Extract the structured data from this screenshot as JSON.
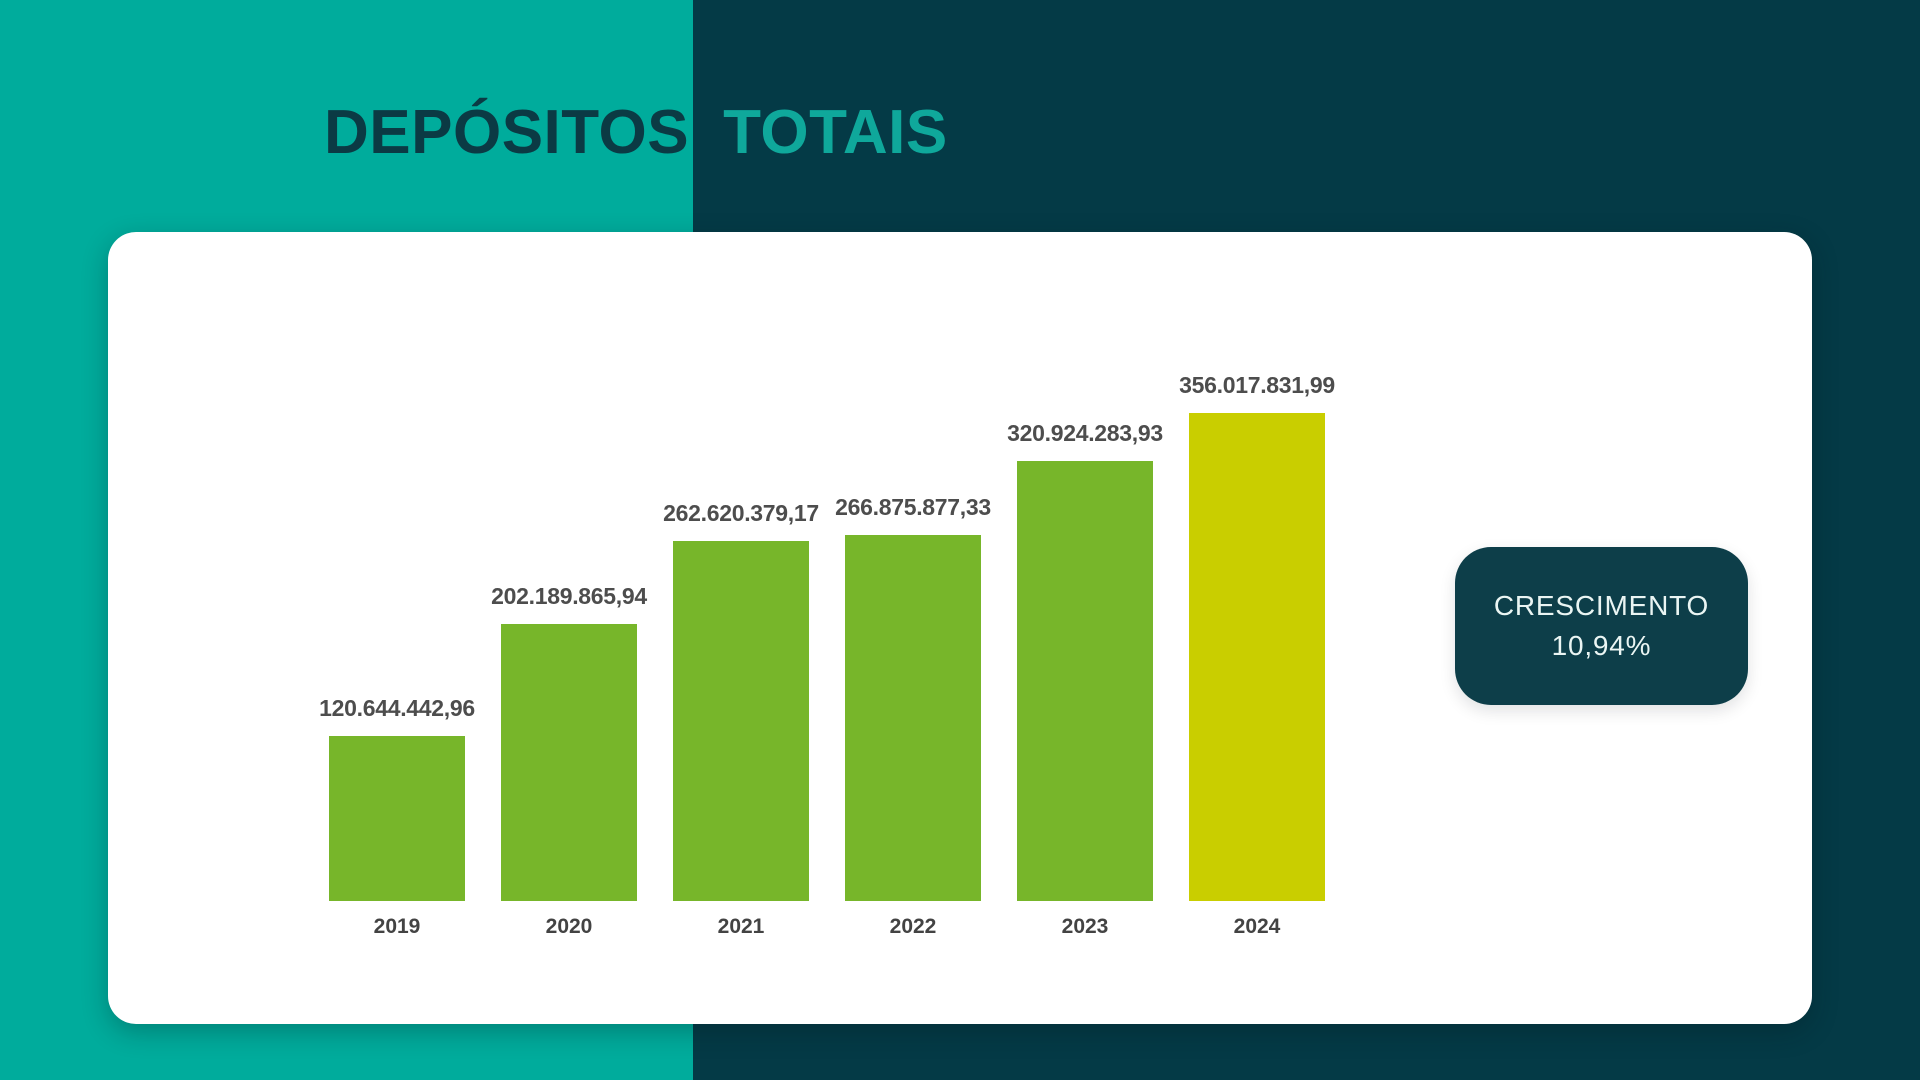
{
  "title": {
    "word1": "DEPÓSITOS",
    "word2": "TOTAIS"
  },
  "badge": {
    "line1": "CRESCIMENTO",
    "line2": "10,94%"
  },
  "colors": {
    "teal_background": "#00AC9C",
    "dark_background": "#043A46",
    "title_dark": "#0B3A44",
    "title_teal": "#0FA89B",
    "card_background": "#FFFFFF",
    "bar_green": "#77B62A",
    "bar_highlight_yellow": "#C9CE00",
    "value_label_gray": "#4D4D4D",
    "year_label_gray": "#434343",
    "badge_background": "#0D3E49",
    "badge_text": "#EAF5F3"
  },
  "chart_data": {
    "type": "bar",
    "title": "DEPÓSITOS TOTAIS",
    "xlabel": "",
    "ylabel": "",
    "grid": false,
    "legend": false,
    "ylim": [
      0,
      356017831.99
    ],
    "categories": [
      "2019",
      "2020",
      "2021",
      "2022",
      "2023",
      "2024"
    ],
    "values": [
      120644442.96,
      202189865.94,
      262620379.17,
      266875877.33,
      320924283.93,
      356017831.99
    ],
    "value_labels": [
      "120.644.442,96",
      "202.189.865,94",
      "262.620.379,17",
      "266.875.877,33",
      "320.924.283,93",
      "356.017.831,99"
    ],
    "bar_colors": [
      "#77B62A",
      "#77B62A",
      "#77B62A",
      "#77B62A",
      "#77B62A",
      "#C9CE00"
    ],
    "annotation": "CRESCIMENTO 10,94%"
  }
}
